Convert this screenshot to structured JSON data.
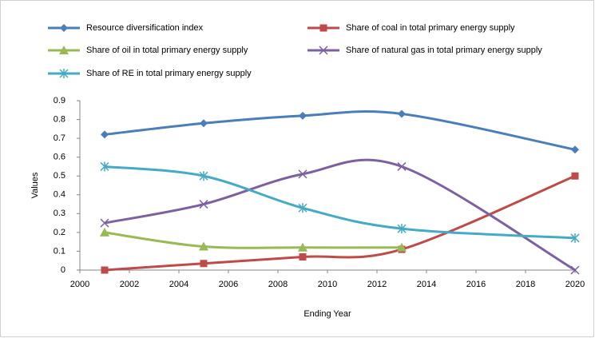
{
  "chart_data": {
    "type": "line",
    "x": [
      2001,
      2005,
      2009,
      2013,
      2020
    ],
    "series": [
      {
        "name": "Resource diversification index",
        "color": "#4a7ebb",
        "marker": "diamond",
        "values": [
          0.72,
          0.78,
          0.82,
          0.83,
          0.64
        ]
      },
      {
        "name": "Share of coal in total primary energy supply",
        "color": "#be4b48",
        "marker": "square",
        "values": [
          0,
          0.035,
          0.07,
          0.11,
          0.5
        ]
      },
      {
        "name": "Share of oil in total primary energy supply",
        "color": "#98b954",
        "marker": "triangle",
        "values": [
          0.2,
          0.125,
          0.12,
          0.12,
          null
        ]
      },
      {
        "name": "Share of natural gas in total primary energy supply",
        "color": "#7d60a0",
        "marker": "x",
        "values": [
          0.25,
          0.35,
          0.51,
          0.55,
          0
        ]
      },
      {
        "name": "Share of RE  in total primary energy supply",
        "color": "#46aac5",
        "marker": "star",
        "values": [
          0.55,
          0.5,
          0.33,
          0.22,
          0.17
        ]
      }
    ],
    "xlabel": "Ending Year",
    "ylabel": "Values",
    "xlim": [
      2000,
      2020
    ],
    "xticks": [
      2000,
      2002,
      2004,
      2006,
      2008,
      2010,
      2012,
      2014,
      2016,
      2018,
      2020
    ],
    "ylim": [
      0,
      0.9
    ],
    "yticks": [
      0,
      0.1,
      0.2,
      0.3,
      0.4,
      0.5,
      0.6,
      0.7,
      0.8,
      0.9
    ],
    "grid": false,
    "smooth": true,
    "legend": "top"
  }
}
